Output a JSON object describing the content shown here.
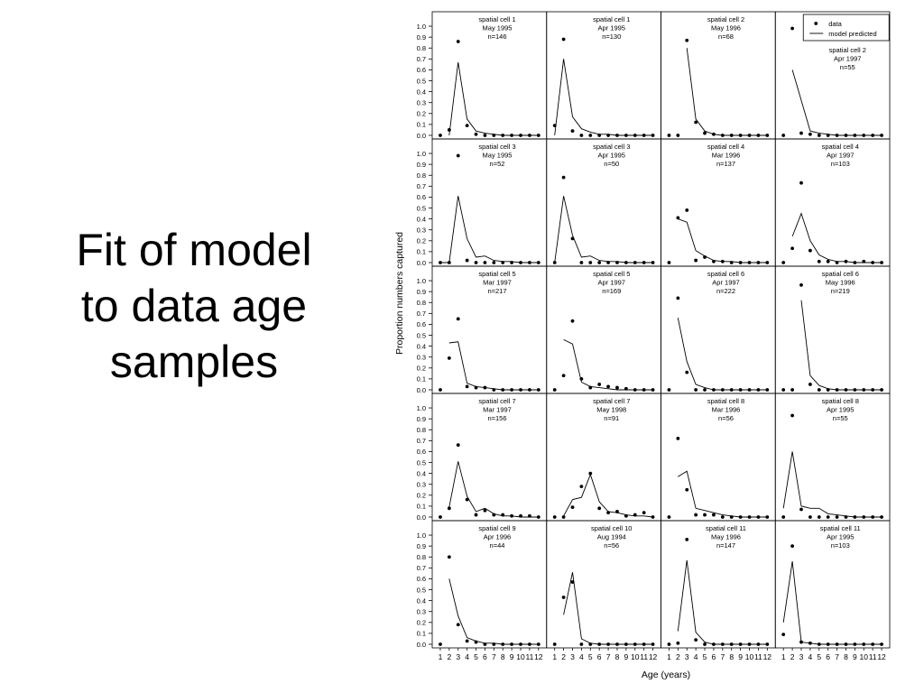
{
  "slide": {
    "title": "Fit of model\nto data age\nsamples"
  },
  "chart_data": {
    "type": "scatter",
    "layout": "small-multiples",
    "xlabel": "Age (years)",
    "ylabel": "Proportion numbers captured",
    "x": [
      1,
      2,
      3,
      4,
      5,
      6,
      7,
      8,
      9,
      10,
      11,
      12
    ],
    "x_tick_labels": [
      "1",
      "2",
      "3",
      "4",
      "5",
      "6",
      "7",
      "8",
      "9",
      "10",
      "11",
      "12"
    ],
    "y_ticks": [
      0.0,
      0.1,
      0.2,
      0.3,
      0.4,
      0.5,
      0.6,
      0.7,
      0.8,
      0.9,
      1.0
    ],
    "y_tick_labels": [
      "0.0",
      "0.1",
      "0.2",
      "0.3",
      "0.4",
      "0.5",
      "0.6",
      "0.7",
      "0.8",
      "0.9",
      "1.0"
    ],
    "ylim": [
      0,
      1.05
    ],
    "xlim": [
      0.5,
      12.5
    ],
    "grid": false,
    "legend": {
      "position": "top-right",
      "data_label": "data",
      "model_label": "model predicted"
    },
    "series_style": {
      "data": "filled circles",
      "model": "thin line"
    },
    "panels": [
      {
        "label": [
          "spatial cell 1",
          "May 1995",
          "n=146"
        ],
        "data": [
          0,
          0.05,
          0.86,
          0.09,
          0.01,
          0,
          0,
          0,
          0,
          0,
          0,
          0
        ],
        "model": [
          null,
          0,
          0.67,
          0.15,
          0.04,
          0.02,
          0.01,
          0,
          0,
          0,
          0,
          0
        ]
      },
      {
        "label": [
          "spatial cell 1",
          "Apr 1995",
          "n=130"
        ],
        "data": [
          0.09,
          0.88,
          0.04,
          0,
          0,
          0,
          0,
          0,
          0,
          0,
          0,
          0
        ],
        "model": [
          0,
          0.7,
          0.17,
          0.06,
          0.03,
          0.01,
          0.01,
          0,
          0,
          0,
          0,
          0
        ]
      },
      {
        "label": [
          "spatial cell 2",
          "May 1996",
          "n=68"
        ],
        "data": [
          0,
          0,
          0.87,
          0.12,
          0.02,
          0.01,
          0,
          0,
          0,
          0,
          0,
          0
        ],
        "model": [
          null,
          null,
          0.8,
          0.15,
          0.04,
          0.01,
          0,
          0,
          0,
          0,
          0,
          0
        ]
      },
      {
        "label": [
          "spatial cell 2",
          "Apr 1997",
          "n=55"
        ],
        "data": [
          0,
          0.98,
          0.02,
          0.01,
          0,
          0,
          0,
          0,
          0,
          0,
          0,
          0
        ],
        "model": [
          null,
          0.6,
          0.32,
          0.04,
          0.02,
          0.01,
          0,
          0,
          0,
          0,
          0,
          0
        ]
      },
      {
        "label": [
          "spatial cell 3",
          "May 1995",
          "n=52"
        ],
        "data": [
          0,
          0,
          0.98,
          0.02,
          0,
          0,
          0,
          0,
          0,
          0,
          0,
          0
        ],
        "model": [
          0,
          0,
          0.61,
          0.22,
          0.05,
          0.06,
          0.02,
          0.01,
          0.01,
          0,
          0,
          0
        ]
      },
      {
        "label": [
          "spatial cell 3",
          "Apr 1995",
          "n=50"
        ],
        "data": [
          0,
          0.78,
          0.22,
          0,
          0,
          0,
          0,
          0,
          0,
          0,
          0,
          0
        ],
        "model": [
          0,
          0.61,
          0.25,
          0.05,
          0.06,
          0.02,
          0.01,
          0.01,
          0,
          0,
          0,
          0
        ]
      },
      {
        "label": [
          "spatial cell 4",
          "Mar 1996",
          "n=137"
        ],
        "data": [
          0,
          0.41,
          0.48,
          0.02,
          0.05,
          0.01,
          0.01,
          0,
          0,
          0,
          0,
          0
        ],
        "model": [
          null,
          0.4,
          0.37,
          0.11,
          0.06,
          0.02,
          0.01,
          0.01,
          0,
          0,
          0,
          0
        ]
      },
      {
        "label": [
          "spatial cell 4",
          "Apr 1997",
          "n=103"
        ],
        "data": [
          0,
          0.13,
          0.73,
          0.11,
          0.01,
          0.01,
          0,
          0.01,
          0,
          0.01,
          0,
          0
        ],
        "model": [
          null,
          0.24,
          0.45,
          0.2,
          0.07,
          0.03,
          0.01,
          0.01,
          0,
          0,
          0,
          0
        ]
      },
      {
        "label": [
          "spatial cell 5",
          "Mar 1997",
          "n=217"
        ],
        "data": [
          0,
          0.29,
          0.65,
          0.03,
          0.02,
          0.02,
          0,
          0,
          0,
          0,
          0,
          0
        ],
        "model": [
          null,
          0.43,
          0.44,
          0.06,
          0.03,
          0.02,
          0.01,
          0,
          0,
          0,
          0,
          0
        ]
      },
      {
        "label": [
          "spatial cell 5",
          "Apr 1997",
          "n=169"
        ],
        "data": [
          0,
          0.13,
          0.63,
          0.1,
          0.02,
          0.05,
          0.03,
          0.02,
          0.01,
          0,
          0,
          0
        ],
        "model": [
          null,
          0.46,
          0.42,
          0.07,
          0.03,
          0.02,
          0.01,
          0,
          0,
          0,
          0,
          0
        ]
      },
      {
        "label": [
          "spatial cell 6",
          "Apr 1997",
          "n=222"
        ],
        "data": [
          0,
          0.84,
          0.16,
          0,
          0,
          0,
          0,
          0,
          0,
          0,
          0,
          0
        ],
        "model": [
          null,
          0.66,
          0.26,
          0.05,
          0.02,
          0,
          0,
          0,
          0,
          0,
          0,
          0
        ]
      },
      {
        "label": [
          "spatial cell 6",
          "May 1996",
          "n=219"
        ],
        "data": [
          0,
          0,
          0.96,
          0.05,
          0,
          0,
          0,
          0,
          0,
          0,
          0,
          0
        ],
        "model": [
          null,
          null,
          0.82,
          0.13,
          0.04,
          0.01,
          0,
          0,
          0,
          0,
          0,
          0
        ]
      },
      {
        "label": [
          "spatial cell 7",
          "Mar 1997",
          "n=156"
        ],
        "data": [
          0,
          0.08,
          0.66,
          0.16,
          0.02,
          0.06,
          0.02,
          0.02,
          0.01,
          0.01,
          0.01,
          0
        ],
        "model": [
          null,
          0.09,
          0.51,
          0.19,
          0.05,
          0.08,
          0.03,
          0.01,
          0.01,
          0,
          0,
          0
        ]
      },
      {
        "label": [
          "spatial cell 7",
          "May 1998",
          "n=91"
        ],
        "data": [
          0,
          0,
          0.09,
          0.28,
          0.4,
          0.08,
          0.04,
          0.05,
          0.01,
          0.02,
          0.04,
          0
        ],
        "model": [
          null,
          0.01,
          0.16,
          0.18,
          0.39,
          0.14,
          0.05,
          0.04,
          0.02,
          0.01,
          0.01,
          0
        ]
      },
      {
        "label": [
          "spatial cell 8",
          "Mar 1996",
          "n=56"
        ],
        "data": [
          0,
          0.72,
          0.25,
          0.02,
          0.02,
          0.02,
          0,
          0,
          0,
          0,
          0,
          0
        ],
        "model": [
          null,
          0.37,
          0.42,
          0.08,
          0.06,
          0.04,
          0.02,
          0.01,
          0,
          0,
          0,
          0
        ]
      },
      {
        "label": [
          "spatial cell 8",
          "Apr 1995",
          "n=55"
        ],
        "data": [
          0,
          0.93,
          0.07,
          0,
          0,
          0,
          0,
          0,
          0,
          0,
          0,
          0
        ],
        "model": [
          0.08,
          0.6,
          0.1,
          0.08,
          0.08,
          0.03,
          0.02,
          0.01,
          0,
          0,
          0,
          0
        ]
      },
      {
        "label": [
          "spatial cell 9",
          "Apr 1996",
          "n=44"
        ],
        "data": [
          0,
          0.8,
          0.18,
          0.03,
          0.02,
          0,
          0,
          0,
          0,
          0,
          0,
          0
        ],
        "model": [
          null,
          0.6,
          0.26,
          0.06,
          0.03,
          0.01,
          0.01,
          0,
          0,
          0,
          0,
          0
        ]
      },
      {
        "label": [
          "spatial cell 10",
          "Aug 1994",
          "n=56"
        ],
        "data": [
          0,
          0.43,
          0.57,
          0,
          0,
          0,
          0,
          0,
          0,
          0,
          0,
          0
        ],
        "model": [
          null,
          0.27,
          0.66,
          0.05,
          0.01,
          0,
          0,
          0,
          0,
          0,
          0,
          0
        ]
      },
      {
        "label": [
          "spatial cell 11",
          "May 1996",
          "n=147"
        ],
        "data": [
          0,
          0.01,
          0.96,
          0.04,
          0,
          0,
          0,
          0,
          0,
          0,
          0,
          0
        ],
        "model": [
          null,
          0.12,
          0.77,
          0.11,
          0.02,
          0,
          0,
          0,
          0,
          0,
          0,
          0
        ]
      },
      {
        "label": [
          "spatial cell 11",
          "Apr 1995",
          "n=103"
        ],
        "data": [
          0.09,
          0.9,
          0.02,
          0.01,
          0,
          0,
          0,
          0,
          0,
          0,
          0,
          0
        ],
        "model": [
          0.2,
          0.76,
          0.02,
          0.01,
          0,
          0,
          0,
          0,
          0,
          0,
          0,
          0
        ]
      }
    ]
  }
}
